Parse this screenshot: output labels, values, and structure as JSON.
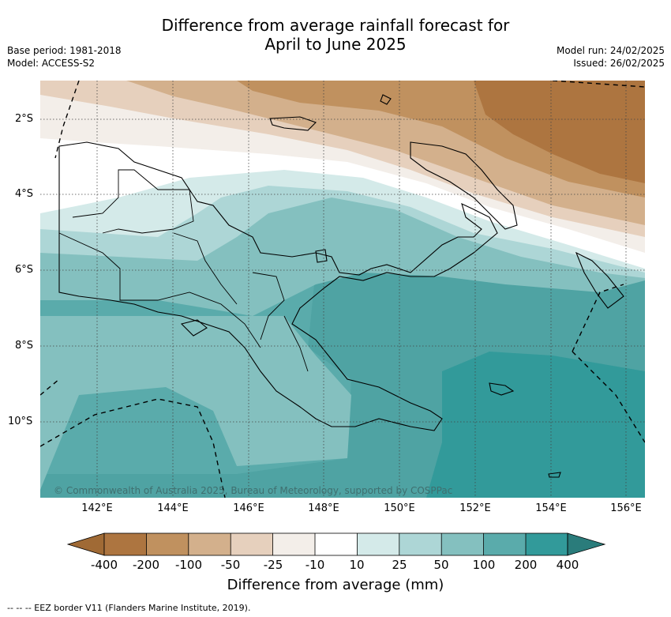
{
  "title_line1": "Difference from average rainfall forecast for",
  "title_line2": "April to June 2025",
  "meta_left": {
    "base_period": "Base period: 1981-2018",
    "model": "Model: ACCESS-S2"
  },
  "meta_right": {
    "model_run": "Model run: 24/02/2025",
    "issued": "Issued: 26/02/2025"
  },
  "lat_labels": [
    "2°S",
    "4°S",
    "6°S",
    "8°S",
    "10°S"
  ],
  "lon_labels": [
    "142°E",
    "144°E",
    "146°E",
    "148°E",
    "150°E",
    "152°E",
    "154°E",
    "156°E"
  ],
  "copyright": "© Commonwealth of Australia 2025, Bureau of Meteorology, supported by COSPPac",
  "colorbar": {
    "ticks": [
      "-400",
      "-200",
      "-100",
      "-50",
      "-25",
      "-10",
      "10",
      "25",
      "50",
      "100",
      "200",
      "400"
    ],
    "colors": [
      "#a06a35",
      "#ad7540",
      "#c0915f",
      "#d3b08c",
      "#e6d0bd",
      "#f3eee9",
      "#ffffff",
      "#d4eae9",
      "#add6d6",
      "#84c0bf",
      "#5aabab",
      "#329a9a",
      "#2a7c7b"
    ],
    "title": "Difference from average (mm)"
  },
  "footnote": "--  --  -- EEZ border V11 (Flanders Marine Institute, 2019)."
}
